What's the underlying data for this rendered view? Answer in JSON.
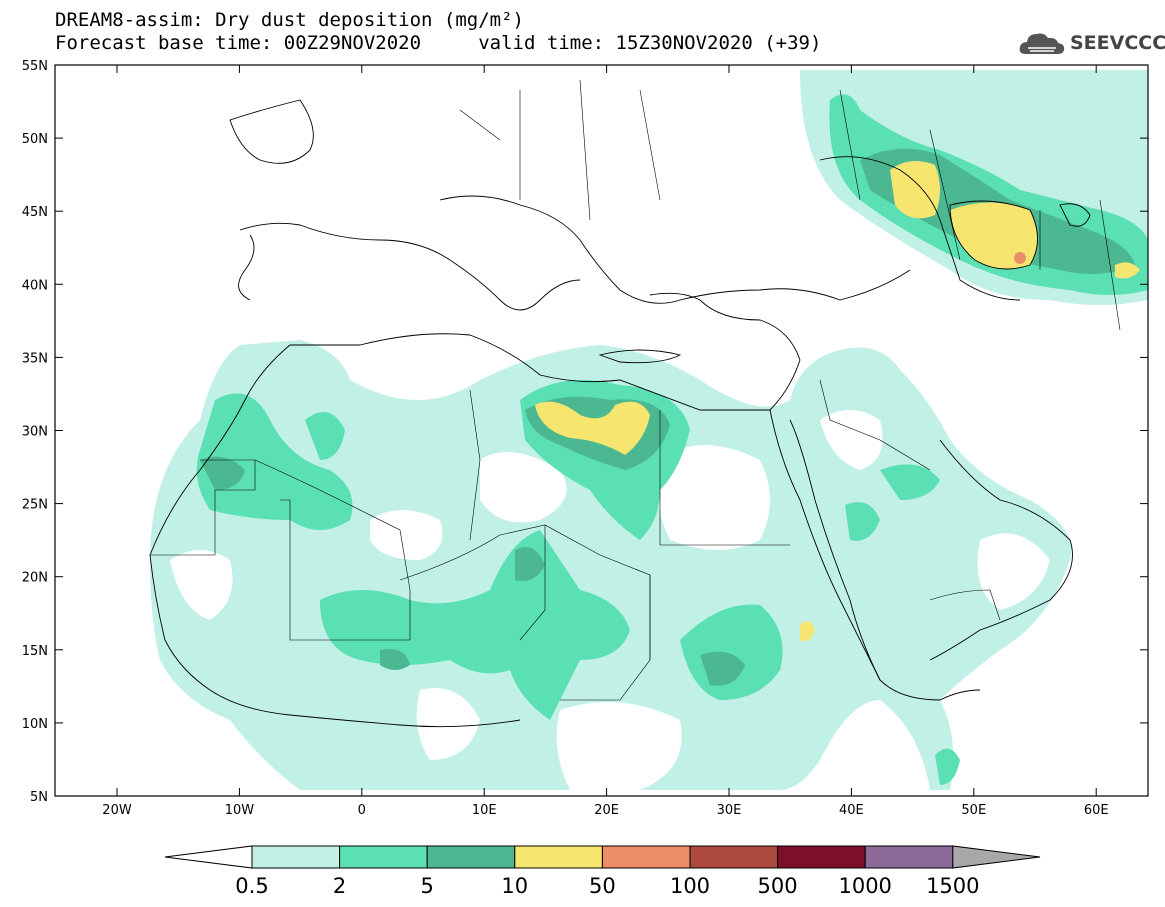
{
  "header": {
    "title_line1": "DREAM8-assim: Dry dust deposition (mg/m²)",
    "title_line2": "Forecast base time: 00Z29NOV2020     valid time: 15Z30NOV2020 (+39)",
    "logo_text": "SEEVCCC"
  },
  "axes": {
    "lat_labels": [
      "55N",
      "50N",
      "45N",
      "40N",
      "35N",
      "30N",
      "25N",
      "20N",
      "15N",
      "10N",
      "5N"
    ],
    "lon_labels": [
      "20W",
      "10W",
      "0",
      "10E",
      "20E",
      "30E",
      "40E",
      "50E",
      "60E"
    ]
  },
  "legend": {
    "labels": [
      "0.5",
      "2",
      "5",
      "10",
      "50",
      "100",
      "500",
      "1000",
      "1500"
    ],
    "colors": [
      "#c0f0e6",
      "#5be0b4",
      "#4cb892",
      "#f6e670",
      "#ec8c68",
      "#ad4a3d",
      "#7c0f2a",
      "#8c6a9a"
    ]
  },
  "colors": {
    "level_0_5": "#c0f0e6",
    "level_2": "#5be0b4",
    "level_5": "#4cb892",
    "level_10": "#f6e670",
    "level_50": "#ec8c68"
  }
}
